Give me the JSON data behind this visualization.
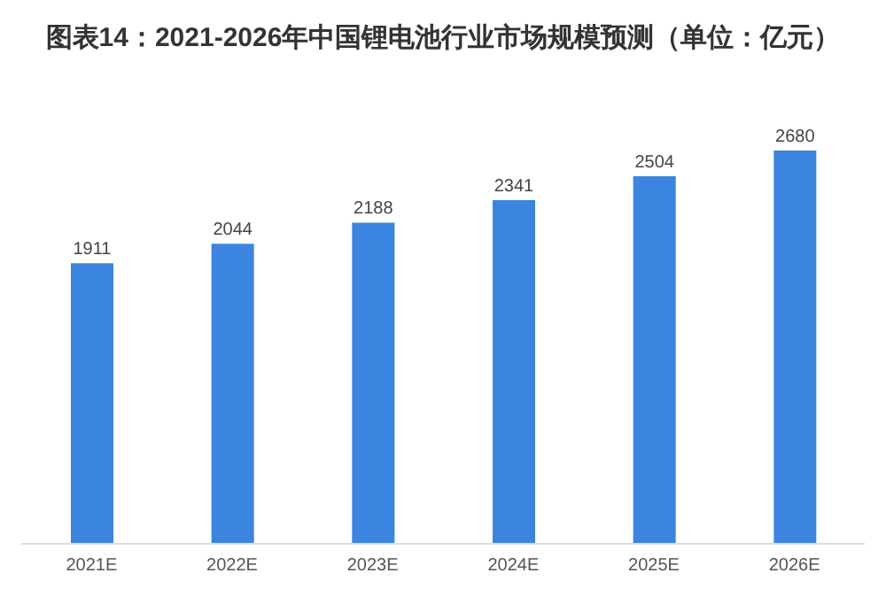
{
  "chart_data": {
    "type": "bar",
    "title": "图表14：2021-2026年中国锂电池行业市场规模预测（单位：亿元）",
    "categories": [
      "2021E",
      "2022E",
      "2023E",
      "2024E",
      "2025E",
      "2026E"
    ],
    "values": [
      1911,
      2044,
      2188,
      2341,
      2504,
      2680
    ],
    "color": "#3b84e0",
    "data_labels": true
  }
}
